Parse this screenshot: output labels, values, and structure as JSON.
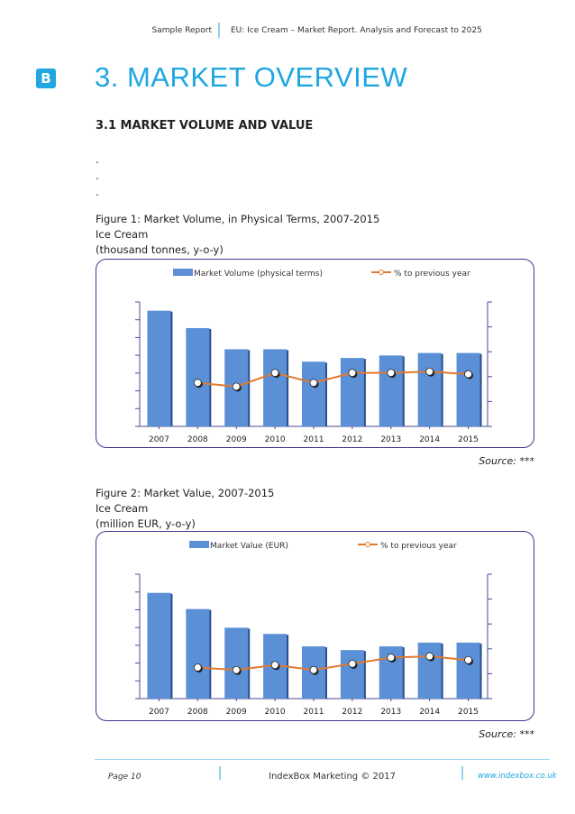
{
  "header": {
    "left": "Sample Report",
    "right": "EU: Ice Cream – Market Report. Analysis and Forecast to 2025"
  },
  "logo_letter": "B",
  "title": "3. MARKET OVERVIEW",
  "section": "3.1 MARKET VOLUME AND VALUE",
  "ellipsis": [
    ".",
    ".",
    "."
  ],
  "figure1": {
    "caption1": "Figure 1: Market Volume, in Physical Terms, 2007-2015",
    "caption2": "Ice Cream",
    "caption3": "(thousand tonnes, y-o-y)",
    "source": "Source: ***"
  },
  "figure2": {
    "caption1": "Figure 2: Market Value, 2007-2015",
    "caption2": "Ice Cream",
    "caption3": "(million EUR, y-o-y)",
    "source": "Source: ***"
  },
  "chart_data": [
    {
      "type": "bar",
      "categories": [
        "2007",
        "2008",
        "2009",
        "2010",
        "2011",
        "2012",
        "2013",
        "2014",
        "2015"
      ],
      "series": [
        {
          "name": "Market Volume (physical terms)",
          "kind": "bar",
          "axis": "left",
          "values": [
            93,
            79,
            62,
            62,
            52,
            55,
            57,
            59,
            59
          ]
        },
        {
          "name": "% to previous year",
          "kind": "line",
          "axis": "right",
          "values": [
            null,
            35,
            32,
            43,
            35,
            43,
            43,
            44,
            42
          ]
        }
      ],
      "ylim_left": [
        0,
        100
      ],
      "ylim_right": [
        0,
        100
      ],
      "colors": {
        "bar": "#5b8fd6",
        "bar_shadow": "#2b4e8a",
        "line": "#e07a2e",
        "axis": "#4a4a9a"
      }
    },
    {
      "type": "bar",
      "categories": [
        "2007",
        "2008",
        "2009",
        "2010",
        "2011",
        "2012",
        "2013",
        "2014",
        "2015"
      ],
      "series": [
        {
          "name": "Market Value (EUR)",
          "kind": "bar",
          "axis": "left",
          "values": [
            85,
            72,
            57,
            52,
            42,
            39,
            42,
            45,
            45
          ]
        },
        {
          "name": "% to previous year",
          "kind": "line",
          "axis": "right",
          "values": [
            null,
            25,
            23,
            27,
            23,
            28,
            33,
            34,
            31
          ]
        }
      ],
      "ylim_left": [
        0,
        100
      ],
      "ylim_right": [
        0,
        100
      ],
      "colors": {
        "bar": "#5b8fd6",
        "bar_shadow": "#2b4e8a",
        "line": "#e07a2e",
        "axis": "#4a4a9a"
      }
    }
  ],
  "footer": {
    "page": "Page 10",
    "center": "IndexBox Marketing © 2017",
    "url": "www.indexbox.co.uk"
  }
}
